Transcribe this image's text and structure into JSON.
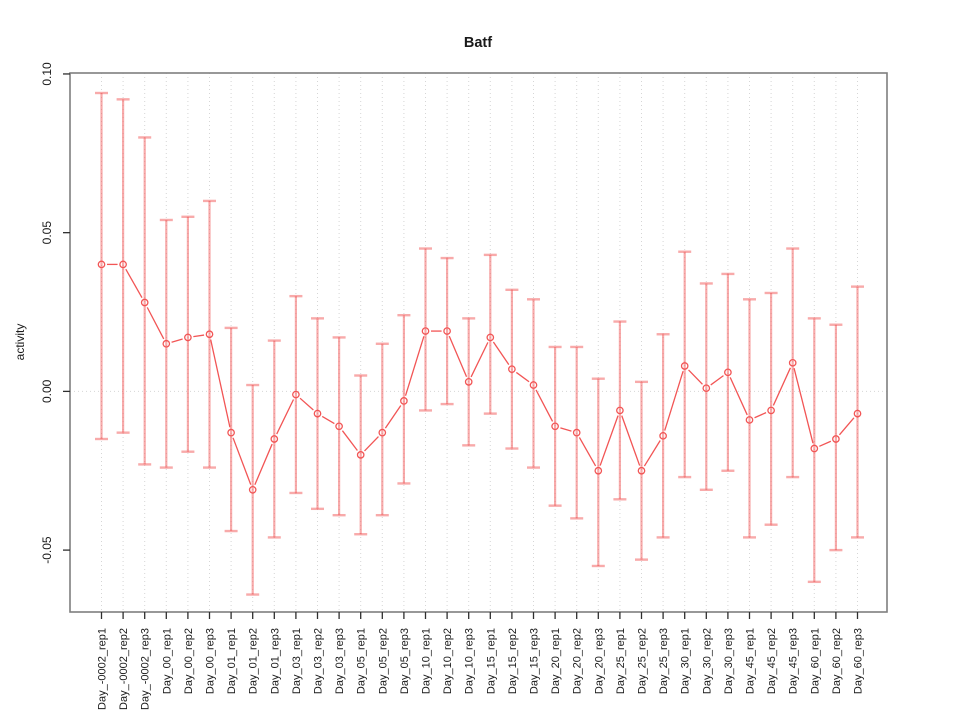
{
  "window": {
    "background": "#ffffff"
  },
  "chart_data": {
    "type": "line",
    "subtype": "points-with-error-bars",
    "title": "Batf",
    "xlabel": "",
    "ylabel": "activity",
    "legend": "none",
    "grid": {
      "vertical_gridlines": "dotted",
      "zero_line": "dotted",
      "horizontal_gridlines": "off"
    },
    "ylim": [
      -0.0695,
      0.1003
    ],
    "yticks": [
      0.1,
      0.05,
      0.0,
      -0.05
    ],
    "ytick_labels": [
      "0.10",
      "0.05",
      "0.00",
      "-0.05"
    ],
    "categories": [
      "Day_-0002_rep1",
      "Day_-0002_rep2",
      "Day_-0002_rep3",
      "Day_00_rep1",
      "Day_00_rep2",
      "Day_00_rep3",
      "Day_01_rep1",
      "Day_01_rep2",
      "Day_01_rep3",
      "Day_03_rep1",
      "Day_03_rep2",
      "Day_03_rep3",
      "Day_05_rep1",
      "Day_05_rep2",
      "Day_05_rep3",
      "Day_10_rep1",
      "Day_10_rep2",
      "Day_10_rep3",
      "Day_15_rep1",
      "Day_15_rep2",
      "Day_15_rep3",
      "Day_20_rep1",
      "Day_20_rep2",
      "Day_20_rep3",
      "Day_25_rep1",
      "Day_25_rep2",
      "Day_25_rep3",
      "Day_30_rep1",
      "Day_30_rep2",
      "Day_30_rep3",
      "Day_45_rep1",
      "Day_45_rep2",
      "Day_45_rep3",
      "Day_60_rep1",
      "Day_60_rep2",
      "Day_60_rep3"
    ],
    "series": [
      {
        "name": "activity",
        "means": [
          0.04,
          0.04,
          0.028,
          0.015,
          0.017,
          0.018,
          -0.013,
          -0.031,
          -0.015,
          -0.001,
          -0.007,
          -0.011,
          -0.02,
          -0.013,
          -0.003,
          0.019,
          0.019,
          0.003,
          0.017,
          0.007,
          0.002,
          -0.011,
          -0.013,
          -0.025,
          -0.006,
          -0.025,
          -0.014,
          0.008,
          0.001,
          0.006,
          -0.009,
          -0.006,
          0.009,
          -0.018,
          -0.015,
          -0.007
        ],
        "upper": [
          0.094,
          0.092,
          0.08,
          0.054,
          0.055,
          0.06,
          0.02,
          0.002,
          0.016,
          0.03,
          0.023,
          0.017,
          0.005,
          0.015,
          0.024,
          0.045,
          0.042,
          0.023,
          0.043,
          0.032,
          0.029,
          0.014,
          0.014,
          0.004,
          0.022,
          0.003,
          0.018,
          0.044,
          0.034,
          0.037,
          0.029,
          0.031,
          0.045,
          0.023,
          0.021,
          0.033
        ],
        "lower": [
          -0.015,
          -0.013,
          -0.023,
          -0.024,
          -0.019,
          -0.024,
          -0.044,
          -0.064,
          -0.046,
          -0.032,
          -0.037,
          -0.039,
          -0.045,
          -0.039,
          -0.029,
          -0.006,
          -0.004,
          -0.017,
          -0.007,
          -0.018,
          -0.024,
          -0.036,
          -0.04,
          -0.055,
          -0.034,
          -0.053,
          -0.046,
          -0.027,
          -0.031,
          -0.025,
          -0.046,
          -0.042,
          -0.027,
          -0.06,
          -0.05,
          -0.046
        ]
      }
    ],
    "colors": {
      "point_line": "#f25555",
      "error_bar": "#f7a2a2",
      "error_bar_rgba": "rgba(242,85,85,0.5)",
      "gridline": "#d6d6d6",
      "zero_line": "#d6d6d6",
      "box_border": "#7f7f7f",
      "tick": "#2e2e2e",
      "text": "#1a1a1a",
      "background": "#ffffff"
    }
  }
}
